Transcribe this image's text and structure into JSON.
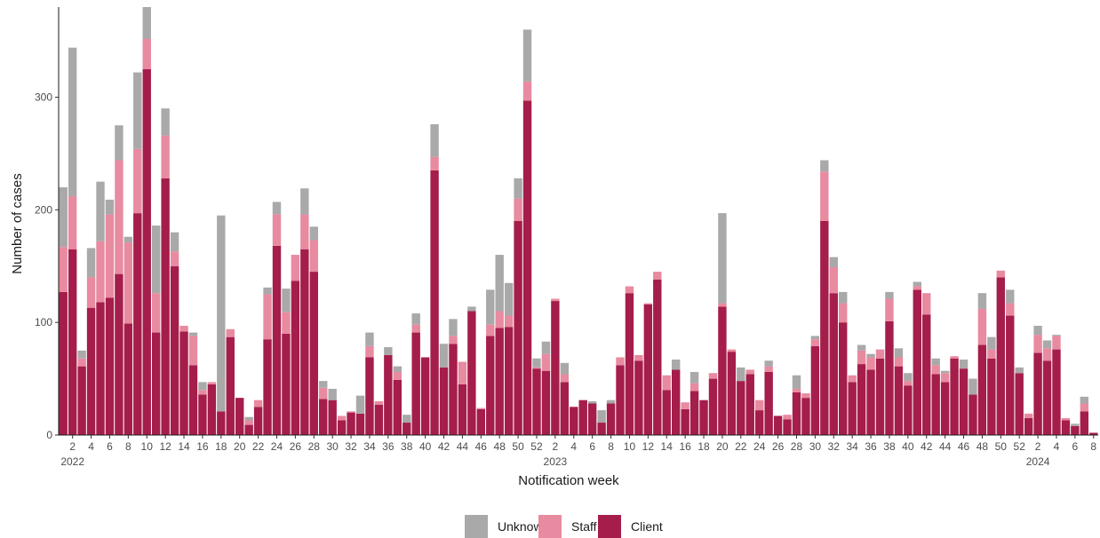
{
  "chart_data": {
    "type": "bar",
    "stacked": true,
    "xlabel": "Notification week",
    "ylabel": "Number of cases",
    "ylim": [
      0,
      380
    ],
    "y_ticks": [
      0,
      100,
      200,
      300
    ],
    "grid": false,
    "legend_position": "bottom",
    "colors": {
      "Unknown": "#a9a9a9",
      "Staff": "#e88aa0",
      "Client": "#a51d4a"
    },
    "x_ticks": [
      {
        "index": 1,
        "label": "2"
      },
      {
        "index": 3,
        "label": "4"
      },
      {
        "index": 5,
        "label": "6"
      },
      {
        "index": 7,
        "label": "8"
      },
      {
        "index": 9,
        "label": "10"
      },
      {
        "index": 11,
        "label": "12"
      },
      {
        "index": 13,
        "label": "14"
      },
      {
        "index": 15,
        "label": "16"
      },
      {
        "index": 17,
        "label": "18"
      },
      {
        "index": 19,
        "label": "20"
      },
      {
        "index": 21,
        "label": "22"
      },
      {
        "index": 23,
        "label": "24"
      },
      {
        "index": 25,
        "label": "26"
      },
      {
        "index": 27,
        "label": "28"
      },
      {
        "index": 29,
        "label": "30"
      },
      {
        "index": 31,
        "label": "32"
      },
      {
        "index": 33,
        "label": "34"
      },
      {
        "index": 35,
        "label": "36"
      },
      {
        "index": 37,
        "label": "38"
      },
      {
        "index": 39,
        "label": "40"
      },
      {
        "index": 41,
        "label": "42"
      },
      {
        "index": 43,
        "label": "44"
      },
      {
        "index": 45,
        "label": "46"
      },
      {
        "index": 47,
        "label": "48"
      },
      {
        "index": 49,
        "label": "50"
      },
      {
        "index": 51,
        "label": "52"
      },
      {
        "index": 53,
        "label": "2"
      },
      {
        "index": 55,
        "label": "4"
      },
      {
        "index": 57,
        "label": "6"
      },
      {
        "index": 59,
        "label": "8"
      },
      {
        "index": 61,
        "label": "10"
      },
      {
        "index": 63,
        "label": "12"
      },
      {
        "index": 65,
        "label": "14"
      },
      {
        "index": 67,
        "label": "16"
      },
      {
        "index": 69,
        "label": "18"
      },
      {
        "index": 71,
        "label": "20"
      },
      {
        "index": 73,
        "label": "22"
      },
      {
        "index": 75,
        "label": "24"
      },
      {
        "index": 77,
        "label": "26"
      },
      {
        "index": 79,
        "label": "28"
      },
      {
        "index": 81,
        "label": "30"
      },
      {
        "index": 83,
        "label": "32"
      },
      {
        "index": 85,
        "label": "34"
      },
      {
        "index": 87,
        "label": "36"
      },
      {
        "index": 89,
        "label": "38"
      },
      {
        "index": 91,
        "label": "40"
      },
      {
        "index": 93,
        "label": "42"
      },
      {
        "index": 95,
        "label": "44"
      },
      {
        "index": 97,
        "label": "46"
      },
      {
        "index": 99,
        "label": "48"
      },
      {
        "index": 101,
        "label": "50"
      },
      {
        "index": 103,
        "label": "52"
      },
      {
        "index": 105,
        "label": "2"
      },
      {
        "index": 107,
        "label": "4"
      },
      {
        "index": 109,
        "label": "6"
      },
      {
        "index": 111,
        "label": "8"
      }
    ],
    "year_labels": [
      {
        "index": 1,
        "label": "2022"
      },
      {
        "index": 53,
        "label": "2023"
      },
      {
        "index": 105,
        "label": "2024"
      }
    ],
    "legend": [
      "Unknown",
      "Staff",
      "Client"
    ],
    "series": [
      {
        "name": "Client",
        "values": [
          127,
          165,
          61,
          113,
          118,
          122,
          143,
          99,
          197,
          325,
          91,
          228,
          150,
          92,
          62,
          36,
          45,
          21,
          87,
          33,
          9,
          25,
          85,
          168,
          90,
          137,
          165,
          145,
          32,
          31,
          13,
          20,
          19,
          69,
          27,
          71,
          49,
          11,
          91,
          69,
          235,
          60,
          81,
          45,
          110,
          23,
          88,
          95,
          96,
          190,
          297,
          59,
          57,
          119,
          47,
          25,
          31,
          28,
          11,
          28,
          62,
          126,
          66,
          116,
          138,
          40,
          58,
          23,
          39,
          31,
          50,
          114,
          74,
          48,
          54,
          22,
          56,
          17,
          14,
          38,
          33,
          79,
          190,
          126,
          100,
          47,
          63,
          58,
          68,
          101,
          61,
          44,
          129,
          107,
          54,
          47,
          68,
          59,
          36,
          80,
          68,
          140,
          106,
          55,
          15,
          73,
          66,
          76,
          13,
          8,
          21,
          2
        ]
      },
      {
        "name": "Staff",
        "values": [
          40,
          47,
          7,
          27,
          54,
          74,
          101,
          72,
          57,
          27,
          35,
          38,
          13,
          5,
          26,
          4,
          2,
          0,
          7,
          0,
          4,
          6,
          40,
          28,
          19,
          23,
          31,
          28,
          10,
          0,
          4,
          1,
          0,
          10,
          3,
          0,
          7,
          0,
          7,
          0,
          12,
          0,
          7,
          20,
          0,
          1,
          10,
          15,
          10,
          20,
          17,
          1,
          15,
          2,
          7,
          0,
          0,
          0,
          0,
          0,
          7,
          6,
          5,
          1,
          7,
          13,
          0,
          6,
          7,
          0,
          5,
          3,
          2,
          0,
          4,
          9,
          5,
          0,
          4,
          3,
          4,
          6,
          44,
          23,
          17,
          6,
          12,
          11,
          8,
          20,
          8,
          4,
          3,
          19,
          8,
          8,
          2,
          0,
          0,
          32,
          8,
          6,
          11,
          0,
          4,
          16,
          11,
          12,
          2,
          0,
          7,
          0
        ]
      },
      {
        "name": "Unknown",
        "values": [
          53,
          132,
          7,
          26,
          53,
          13,
          31,
          5,
          68,
          28,
          60,
          24,
          17,
          0,
          3,
          7,
          0,
          174,
          0,
          0,
          3,
          0,
          6,
          11,
          21,
          0,
          23,
          12,
          6,
          10,
          0,
          0,
          16,
          12,
          0,
          7,
          5,
          7,
          10,
          0,
          29,
          21,
          15,
          0,
          4,
          0,
          31,
          50,
          29,
          18,
          46,
          8,
          11,
          0,
          10,
          0,
          0,
          2,
          11,
          3,
          0,
          0,
          0,
          0,
          0,
          0,
          9,
          0,
          10,
          0,
          0,
          80,
          0,
          12,
          0,
          0,
          5,
          0,
          0,
          12,
          0,
          3,
          10,
          9,
          10,
          0,
          5,
          3,
          0,
          6,
          8,
          7,
          4,
          0,
          6,
          2,
          0,
          8,
          14,
          14,
          11,
          0,
          12,
          5,
          0,
          8,
          7,
          1,
          0,
          2,
          6,
          0
        ]
      }
    ]
  }
}
